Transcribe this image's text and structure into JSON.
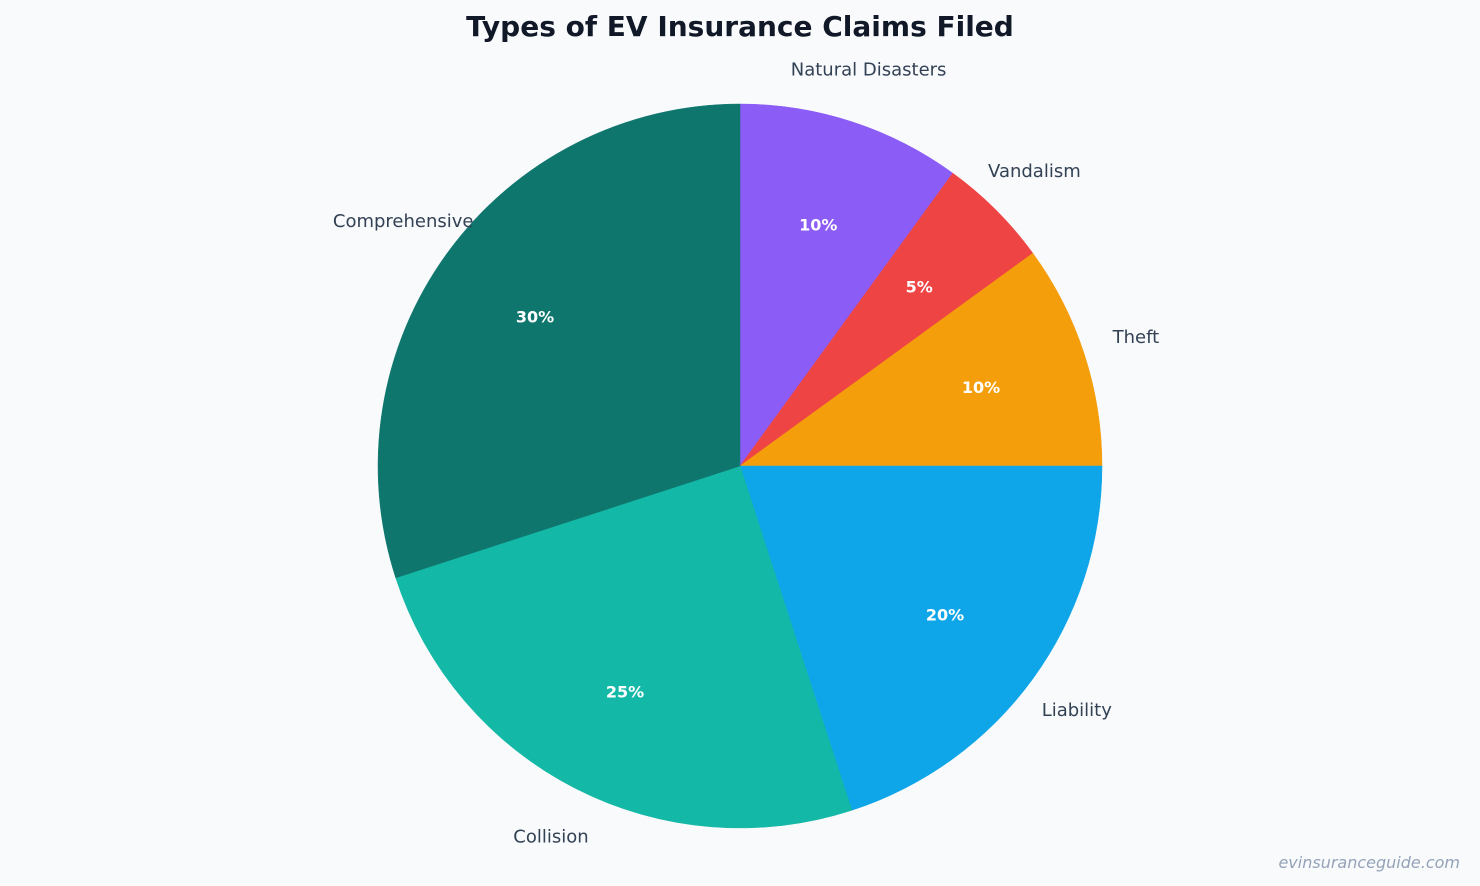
{
  "chart_data": {
    "type": "pie",
    "title": "Types of EV Insurance Claims Filed",
    "start_angle": "top (12 o'clock), clockwise",
    "categories": [
      "Natural Disasters",
      "Vandalism",
      "Theft",
      "Liability",
      "Collision",
      "Comprehensive"
    ],
    "values": [
      10,
      5,
      10,
      20,
      25,
      30
    ],
    "value_labels": [
      "10%",
      "5%",
      "10%",
      "20%",
      "25%",
      "30%"
    ],
    "colors": [
      "#8b5cf6",
      "#ef4444",
      "#f59e0b",
      "#0ea5e9",
      "#14b8a6",
      "#0f766e"
    ],
    "unit": "%",
    "legend": "none (labels placed outside slices)"
  },
  "header": {
    "title": "Types of EV Insurance Claims Filed"
  },
  "footer": {
    "watermark": "evinsuranceguide.com"
  },
  "colors": {
    "background": "#f8fafc",
    "title": "#111827",
    "label": "#334155",
    "percent_label": "#ffffff",
    "watermark": "#94a3b8"
  }
}
